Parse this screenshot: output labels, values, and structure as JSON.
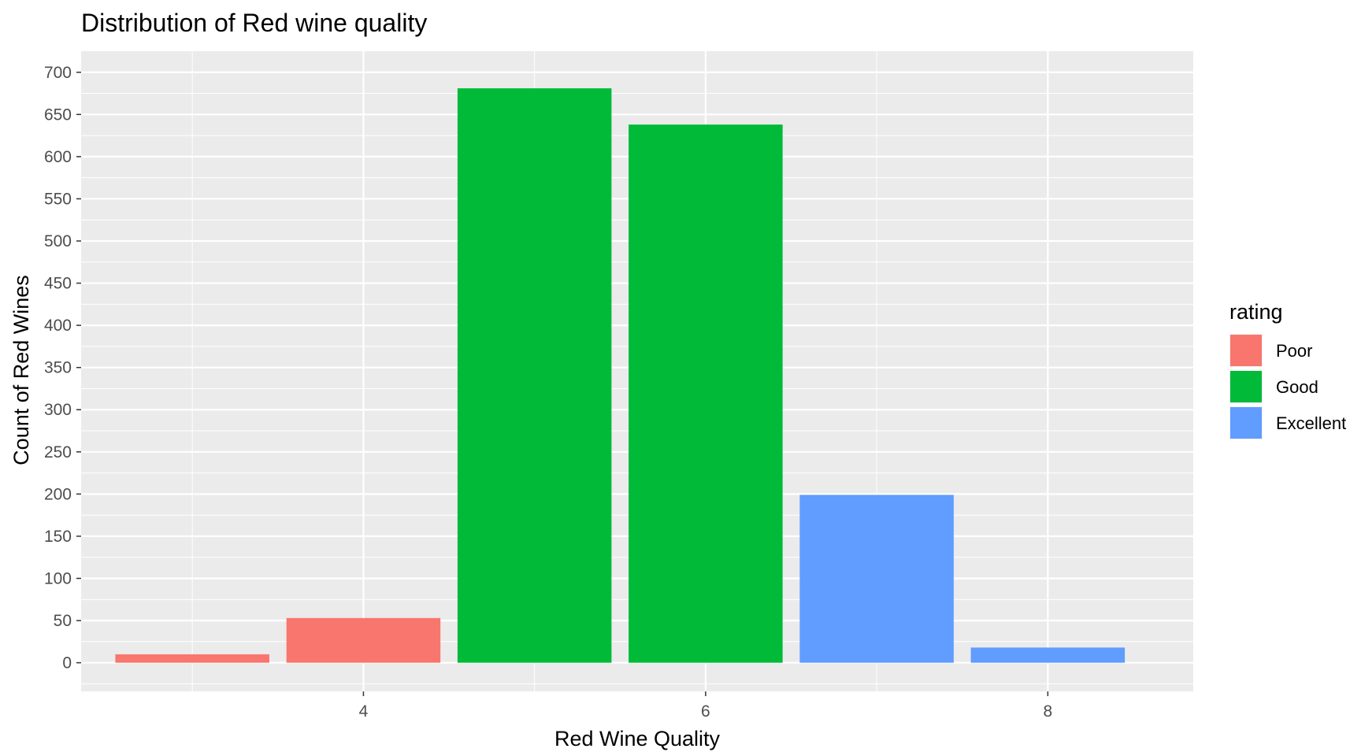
{
  "chart_data": {
    "type": "bar",
    "title": "Distribution of Red wine quality",
    "xlabel": "Red Wine Quality",
    "ylabel": "Count of Red Wines",
    "x": [
      3,
      4,
      5,
      6,
      7,
      8
    ],
    "values": [
      10,
      53,
      681,
      638,
      199,
      18
    ],
    "rating": [
      "Poor",
      "Poor",
      "Good",
      "Good",
      "Excellent",
      "Excellent"
    ],
    "xlim": [
      2.35,
      8.85
    ],
    "ylim": [
      -34,
      725
    ],
    "xticks": [
      4,
      6,
      8
    ],
    "yticks": [
      0,
      50,
      100,
      150,
      200,
      250,
      300,
      350,
      400,
      450,
      500,
      550,
      600,
      650,
      700
    ],
    "grid": true,
    "legend": {
      "title": "rating",
      "position": "right",
      "entries": [
        {
          "name": "Poor",
          "color": "#F8766D"
        },
        {
          "name": "Good",
          "color": "#00BA38"
        },
        {
          "name": "Excellent",
          "color": "#619CFF"
        }
      ]
    },
    "colors": {
      "panel_background": "#EBEBEB",
      "grid": "#FFFFFF"
    }
  }
}
